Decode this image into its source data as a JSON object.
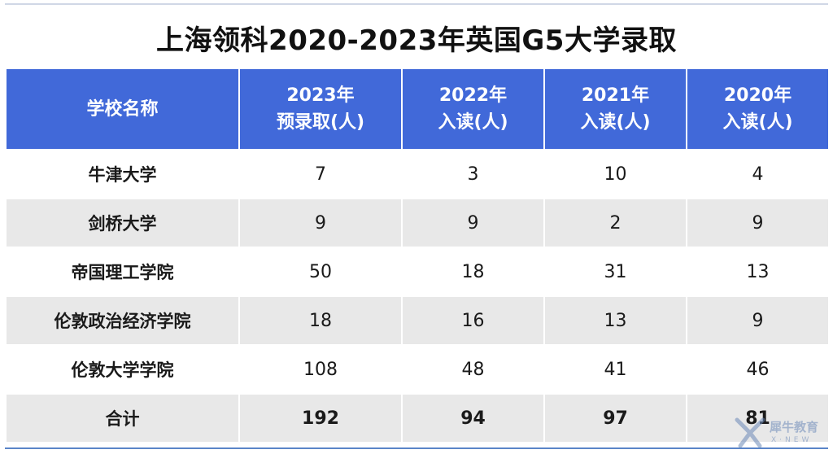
{
  "title": "上海领科2020-2023年英国G5大学录取",
  "table": {
    "headers": [
      {
        "line1": "学校名称",
        "line2": ""
      },
      {
        "line1": "2023年",
        "line2": "预录取(人)"
      },
      {
        "line1": "2022年",
        "line2": "入读(人)"
      },
      {
        "line1": "2021年",
        "line2": "入读(人)"
      },
      {
        "line1": "2020年",
        "line2": "入读(人)"
      }
    ],
    "rows": [
      {
        "school": "牛津大学",
        "y2023": "7",
        "y2022": "3",
        "y2021": "10",
        "y2020": "4"
      },
      {
        "school": "剑桥大学",
        "y2023": "9",
        "y2022": "9",
        "y2021": "2",
        "y2020": "9"
      },
      {
        "school": "帝国理工学院",
        "y2023": "50",
        "y2022": "18",
        "y2021": "31",
        "y2020": "13"
      },
      {
        "school": "伦敦政治经济学院",
        "y2023": "18",
        "y2022": "16",
        "y2021": "13",
        "y2020": "9"
      },
      {
        "school": "伦敦大学学院",
        "y2023": "108",
        "y2022": "48",
        "y2021": "41",
        "y2020": "46"
      }
    ],
    "total": {
      "label": "合计",
      "y2023": "192",
      "y2022": "94",
      "y2021": "97",
      "y2020": "81"
    }
  },
  "watermark": {
    "text": "犀牛教育",
    "sub": "X·NEW"
  },
  "colors": {
    "header_bg": "#4169d9",
    "header_text": "#ffffff",
    "stripe": "#e8e8e8"
  }
}
